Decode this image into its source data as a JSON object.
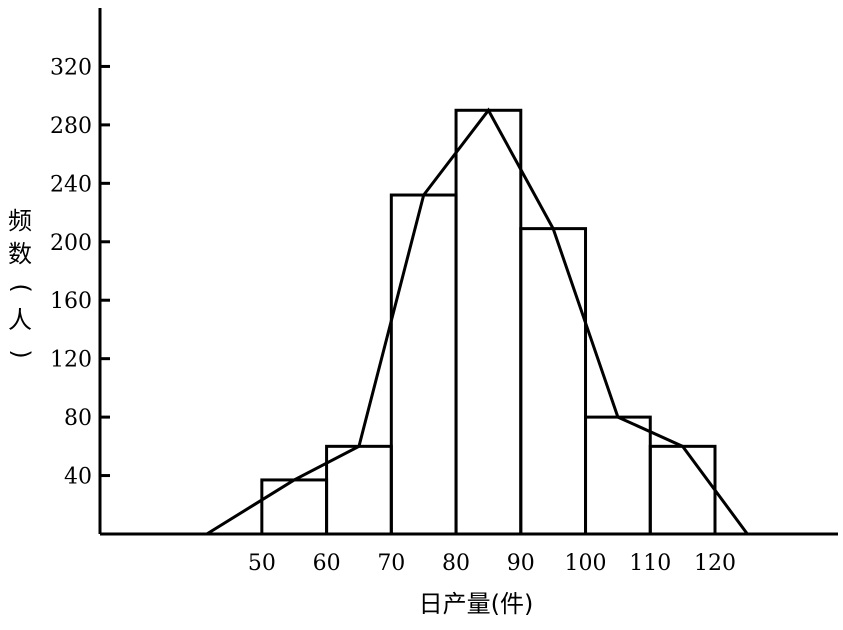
{
  "chart_data": {
    "type": "bar",
    "subtype": "histogram-with-frequency-polygon",
    "xlabel": "日产量(件)",
    "ylabel": "频数(人)",
    "x_ticks": [
      50,
      60,
      70,
      80,
      90,
      100,
      110,
      120
    ],
    "y_ticks": [
      40,
      80,
      120,
      160,
      200,
      240,
      280,
      320
    ],
    "xlim": [
      25,
      139
    ],
    "ylim": [
      0,
      360
    ],
    "bins": [
      {
        "from": 50,
        "to": 60,
        "value": 37
      },
      {
        "from": 60,
        "to": 70,
        "value": 60
      },
      {
        "from": 70,
        "to": 80,
        "value": 232
      },
      {
        "from": 80,
        "to": 90,
        "value": 290
      },
      {
        "from": 90,
        "to": 100,
        "value": 209
      },
      {
        "from": 100,
        "to": 110,
        "value": 80
      },
      {
        "from": 110,
        "to": 120,
        "value": 60
      }
    ],
    "polygon": {
      "x": [
        41.5,
        55,
        65,
        75,
        85,
        95,
        105,
        115,
        125
      ],
      "y": [
        0,
        37,
        60,
        232,
        290,
        209,
        80,
        60,
        0
      ]
    },
    "grid": false,
    "legend": "none"
  }
}
